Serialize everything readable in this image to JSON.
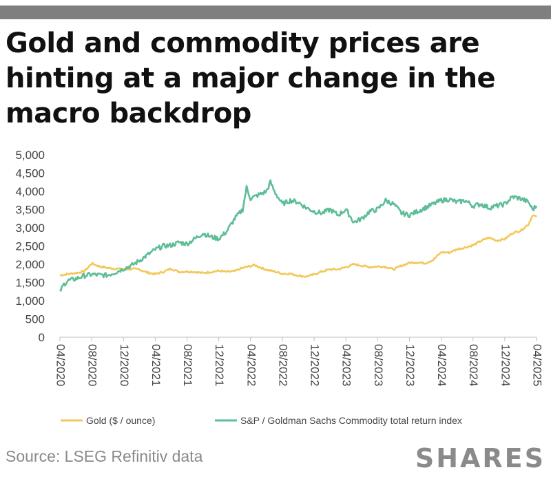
{
  "header": {
    "title": "Gold and commodity prices are hinting at a major change in the macro backdrop",
    "bar_color": "#7f7f7f"
  },
  "footer": {
    "source": "Source: LSEG Refinitiv data",
    "logo": "SHARES"
  },
  "chart_data": {
    "type": "line",
    "title": "Gold and commodity prices are hinting at a major change in the macro backdrop",
    "xlabel": "",
    "ylabel": "",
    "ylim": [
      0,
      5000
    ],
    "y_ticks": [
      0,
      500,
      1000,
      1500,
      2000,
      2500,
      3000,
      3500,
      4000,
      4500,
      5000
    ],
    "y_tick_labels": [
      "0",
      "500",
      "1,000",
      "1,500",
      "2,000",
      "2,500",
      "3,000",
      "3,500",
      "4,000",
      "4,500",
      "5,000"
    ],
    "x_tick_labels": [
      "04/2020",
      "08/2020",
      "12/2020",
      "04/2021",
      "08/2021",
      "12/2021",
      "04/2022",
      "08/2022",
      "12/2022",
      "04/2023",
      "08/2023",
      "12/2023",
      "04/2024",
      "08/2024",
      "12/2024",
      "04/2025"
    ],
    "x_unit": "months since 04/2020",
    "xlim": [
      0,
      60
    ],
    "grid": false,
    "legend_position": "bottom",
    "series": [
      {
        "name": "Gold ($ / ounce)",
        "color": "#f2c85b",
        "points": [
          [
            0,
            1700
          ],
          [
            1,
            1730
          ],
          [
            2,
            1760
          ],
          [
            3,
            1800
          ],
          [
            3.5,
            1900
          ],
          [
            4,
            2020
          ],
          [
            5,
            1940
          ],
          [
            6,
            1900
          ],
          [
            7,
            1880
          ],
          [
            8,
            1860
          ],
          [
            9,
            1870
          ],
          [
            10,
            1860
          ],
          [
            11,
            1770
          ],
          [
            12,
            1730
          ],
          [
            13,
            1790
          ],
          [
            14,
            1880
          ],
          [
            15,
            1790
          ],
          [
            16,
            1800
          ],
          [
            17,
            1790
          ],
          [
            18,
            1760
          ],
          [
            19,
            1790
          ],
          [
            20,
            1820
          ],
          [
            21,
            1790
          ],
          [
            22,
            1810
          ],
          [
            23,
            1900
          ],
          [
            24,
            1950
          ],
          [
            24.5,
            1980
          ],
          [
            25,
            1930
          ],
          [
            26,
            1850
          ],
          [
            27,
            1800
          ],
          [
            28,
            1740
          ],
          [
            29,
            1740
          ],
          [
            30,
            1690
          ],
          [
            31,
            1660
          ],
          [
            32,
            1720
          ],
          [
            33,
            1800
          ],
          [
            34,
            1860
          ],
          [
            35,
            1860
          ],
          [
            36,
            1920
          ],
          [
            37,
            2000
          ],
          [
            38,
            1960
          ],
          [
            39,
            1920
          ],
          [
            40,
            1940
          ],
          [
            41,
            1930
          ],
          [
            42,
            1860
          ],
          [
            43,
            1960
          ],
          [
            44,
            2040
          ],
          [
            45,
            2050
          ],
          [
            46,
            2030
          ],
          [
            47,
            2120
          ],
          [
            48,
            2330
          ],
          [
            49,
            2320
          ],
          [
            50,
            2410
          ],
          [
            51,
            2460
          ],
          [
            52,
            2520
          ],
          [
            53,
            2640
          ],
          [
            54,
            2730
          ],
          [
            55,
            2650
          ],
          [
            56,
            2690
          ],
          [
            57,
            2860
          ],
          [
            58,
            2920
          ],
          [
            59,
            3100
          ],
          [
            59.5,
            3350
          ],
          [
            60,
            3300
          ]
        ]
      },
      {
        "name": "S&P / Goldman Sachs Commodity total return index",
        "color": "#5dbd97",
        "points": [
          [
            0,
            1250
          ],
          [
            0.5,
            1450
          ],
          [
            1,
            1550
          ],
          [
            2,
            1600
          ],
          [
            3,
            1680
          ],
          [
            4,
            1720
          ],
          [
            5,
            1700
          ],
          [
            6,
            1700
          ],
          [
            7,
            1780
          ],
          [
            8,
            1880
          ],
          [
            9,
            1960
          ],
          [
            10,
            2100
          ],
          [
            11,
            2250
          ],
          [
            12,
            2400
          ],
          [
            13,
            2500
          ],
          [
            14,
            2520
          ],
          [
            15,
            2600
          ],
          [
            16,
            2560
          ],
          [
            17,
            2700
          ],
          [
            18,
            2850
          ],
          [
            19,
            2750
          ],
          [
            20,
            2700
          ],
          [
            21,
            2900
          ],
          [
            22,
            3250
          ],
          [
            23,
            3500
          ],
          [
            23.5,
            4100
          ],
          [
            24,
            3800
          ],
          [
            25,
            3900
          ],
          [
            26,
            4000
          ],
          [
            26.5,
            4250
          ],
          [
            27,
            4000
          ],
          [
            28,
            3650
          ],
          [
            29,
            3750
          ],
          [
            30,
            3700
          ],
          [
            31,
            3550
          ],
          [
            32,
            3450
          ],
          [
            33,
            3400
          ],
          [
            34,
            3500
          ],
          [
            35,
            3350
          ],
          [
            36,
            3500
          ],
          [
            37,
            3150
          ],
          [
            38,
            3250
          ],
          [
            39,
            3450
          ],
          [
            40,
            3500
          ],
          [
            41,
            3750
          ],
          [
            42,
            3650
          ],
          [
            43,
            3400
          ],
          [
            44,
            3350
          ],
          [
            45,
            3450
          ],
          [
            46,
            3550
          ],
          [
            47,
            3650
          ],
          [
            48,
            3750
          ],
          [
            49,
            3780
          ],
          [
            50,
            3700
          ],
          [
            51,
            3750
          ],
          [
            52,
            3600
          ],
          [
            53,
            3650
          ],
          [
            54,
            3550
          ],
          [
            55,
            3600
          ],
          [
            56,
            3650
          ],
          [
            57,
            3850
          ],
          [
            58,
            3800
          ],
          [
            59,
            3700
          ],
          [
            59.5,
            3500
          ],
          [
            60,
            3600
          ]
        ]
      }
    ]
  }
}
